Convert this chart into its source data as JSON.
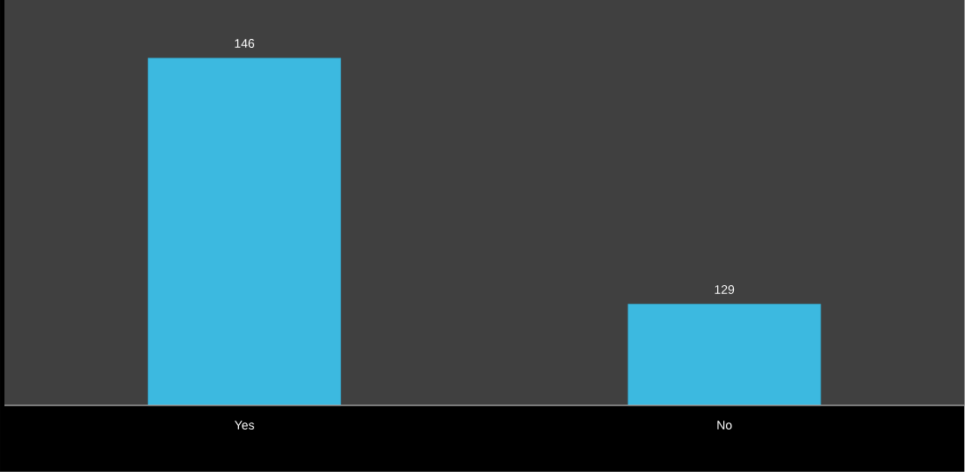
{
  "chart_data": {
    "type": "bar",
    "categories": [
      "Yes",
      "No"
    ],
    "values": [
      146,
      129
    ],
    "color": "#3cb9e0",
    "ylim": [
      122,
      150
    ],
    "data_labels": true
  }
}
